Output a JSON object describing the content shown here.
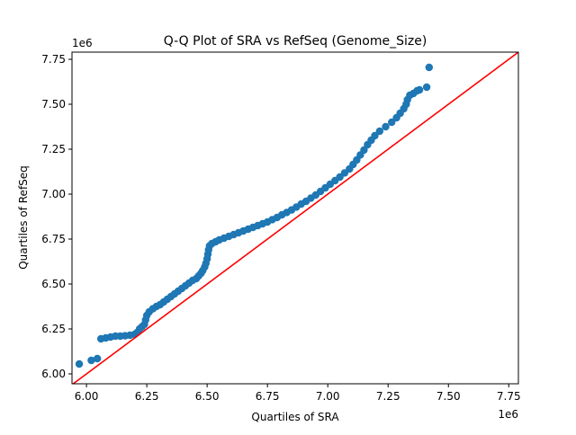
{
  "chart_data": {
    "type": "scatter",
    "title": "Q-Q Plot of SRA vs RefSeq (Genome_Size)",
    "xlabel": "Quartiles of SRA",
    "ylabel": "Quartiles of RefSeq",
    "x_offset_label": "1e6",
    "y_offset_label": "1e6",
    "xlim": [
      5940000,
      7790000
    ],
    "ylim": [
      5945000,
      7790000
    ],
    "x_ticks": [
      6000000,
      6250000,
      6500000,
      6750000,
      7000000,
      7250000,
      7500000,
      7750000
    ],
    "x_tick_labels": [
      "6.00",
      "6.25",
      "6.50",
      "6.75",
      "7.00",
      "7.25",
      "7.50",
      "7.75"
    ],
    "y_ticks": [
      6000000,
      6250000,
      6500000,
      6750000,
      7000000,
      7250000,
      7500000,
      7750000
    ],
    "y_tick_labels": [
      "6.00",
      "6.25",
      "6.50",
      "6.75",
      "7.00",
      "7.25",
      "7.50",
      "7.75"
    ],
    "grid": false,
    "marker_color": "#1f77b4",
    "reference_line": {
      "color": "#ff0000",
      "slope": 1,
      "intercept": 0
    },
    "points": [
      [
        5970000,
        6055000
      ],
      [
        6020000,
        6075000
      ],
      [
        6045000,
        6085000
      ],
      [
        6060000,
        6195000
      ],
      [
        6080000,
        6200000
      ],
      [
        6100000,
        6205000
      ],
      [
        6120000,
        6210000
      ],
      [
        6140000,
        6210000
      ],
      [
        6160000,
        6212000
      ],
      [
        6180000,
        6215000
      ],
      [
        6200000,
        6220000
      ],
      [
        6210000,
        6230000
      ],
      [
        6220000,
        6250000
      ],
      [
        6230000,
        6262000
      ],
      [
        6240000,
        6275000
      ],
      [
        6245000,
        6300000
      ],
      [
        6250000,
        6325000
      ],
      [
        6260000,
        6345000
      ],
      [
        6275000,
        6362000
      ],
      [
        6290000,
        6375000
      ],
      [
        6305000,
        6385000
      ],
      [
        6320000,
        6400000
      ],
      [
        6335000,
        6415000
      ],
      [
        6350000,
        6430000
      ],
      [
        6365000,
        6445000
      ],
      [
        6380000,
        6460000
      ],
      [
        6395000,
        6475000
      ],
      [
        6410000,
        6490000
      ],
      [
        6425000,
        6505000
      ],
      [
        6440000,
        6520000
      ],
      [
        6455000,
        6530000
      ],
      [
        6465000,
        6545000
      ],
      [
        6475000,
        6560000
      ],
      [
        6482000,
        6575000
      ],
      [
        6490000,
        6595000
      ],
      [
        6495000,
        6615000
      ],
      [
        6500000,
        6640000
      ],
      [
        6503000,
        6665000
      ],
      [
        6506000,
        6690000
      ],
      [
        6510000,
        6712000
      ],
      [
        6520000,
        6725000
      ],
      [
        6535000,
        6735000
      ],
      [
        6550000,
        6745000
      ],
      [
        6570000,
        6755000
      ],
      [
        6590000,
        6765000
      ],
      [
        6610000,
        6775000
      ],
      [
        6630000,
        6785000
      ],
      [
        6650000,
        6795000
      ],
      [
        6670000,
        6805000
      ],
      [
        6690000,
        6815000
      ],
      [
        6710000,
        6825000
      ],
      [
        6730000,
        6835000
      ],
      [
        6750000,
        6845000
      ],
      [
        6770000,
        6858000
      ],
      [
        6790000,
        6870000
      ],
      [
        6810000,
        6885000
      ],
      [
        6830000,
        6898000
      ],
      [
        6850000,
        6912000
      ],
      [
        6870000,
        6928000
      ],
      [
        6890000,
        6945000
      ],
      [
        6910000,
        6960000
      ],
      [
        6930000,
        6978000
      ],
      [
        6950000,
        6995000
      ],
      [
        6970000,
        7015000
      ],
      [
        6990000,
        7035000
      ],
      [
        7010000,
        7055000
      ],
      [
        7030000,
        7075000
      ],
      [
        7050000,
        7095000
      ],
      [
        7070000,
        7118000
      ],
      [
        7090000,
        7140000
      ],
      [
        7105000,
        7165000
      ],
      [
        7120000,
        7190000
      ],
      [
        7135000,
        7218000
      ],
      [
        7150000,
        7245000
      ],
      [
        7165000,
        7275000
      ],
      [
        7180000,
        7300000
      ],
      [
        7195000,
        7325000
      ],
      [
        7215000,
        7350000
      ],
      [
        7240000,
        7375000
      ],
      [
        7265000,
        7400000
      ],
      [
        7285000,
        7425000
      ],
      [
        7300000,
        7450000
      ],
      [
        7315000,
        7475000
      ],
      [
        7325000,
        7500000
      ],
      [
        7330000,
        7525000
      ],
      [
        7340000,
        7550000
      ],
      [
        7355000,
        7560000
      ],
      [
        7370000,
        7575000
      ],
      [
        7380000,
        7580000
      ],
      [
        7410000,
        7595000
      ],
      [
        7420000,
        7705000
      ]
    ]
  }
}
